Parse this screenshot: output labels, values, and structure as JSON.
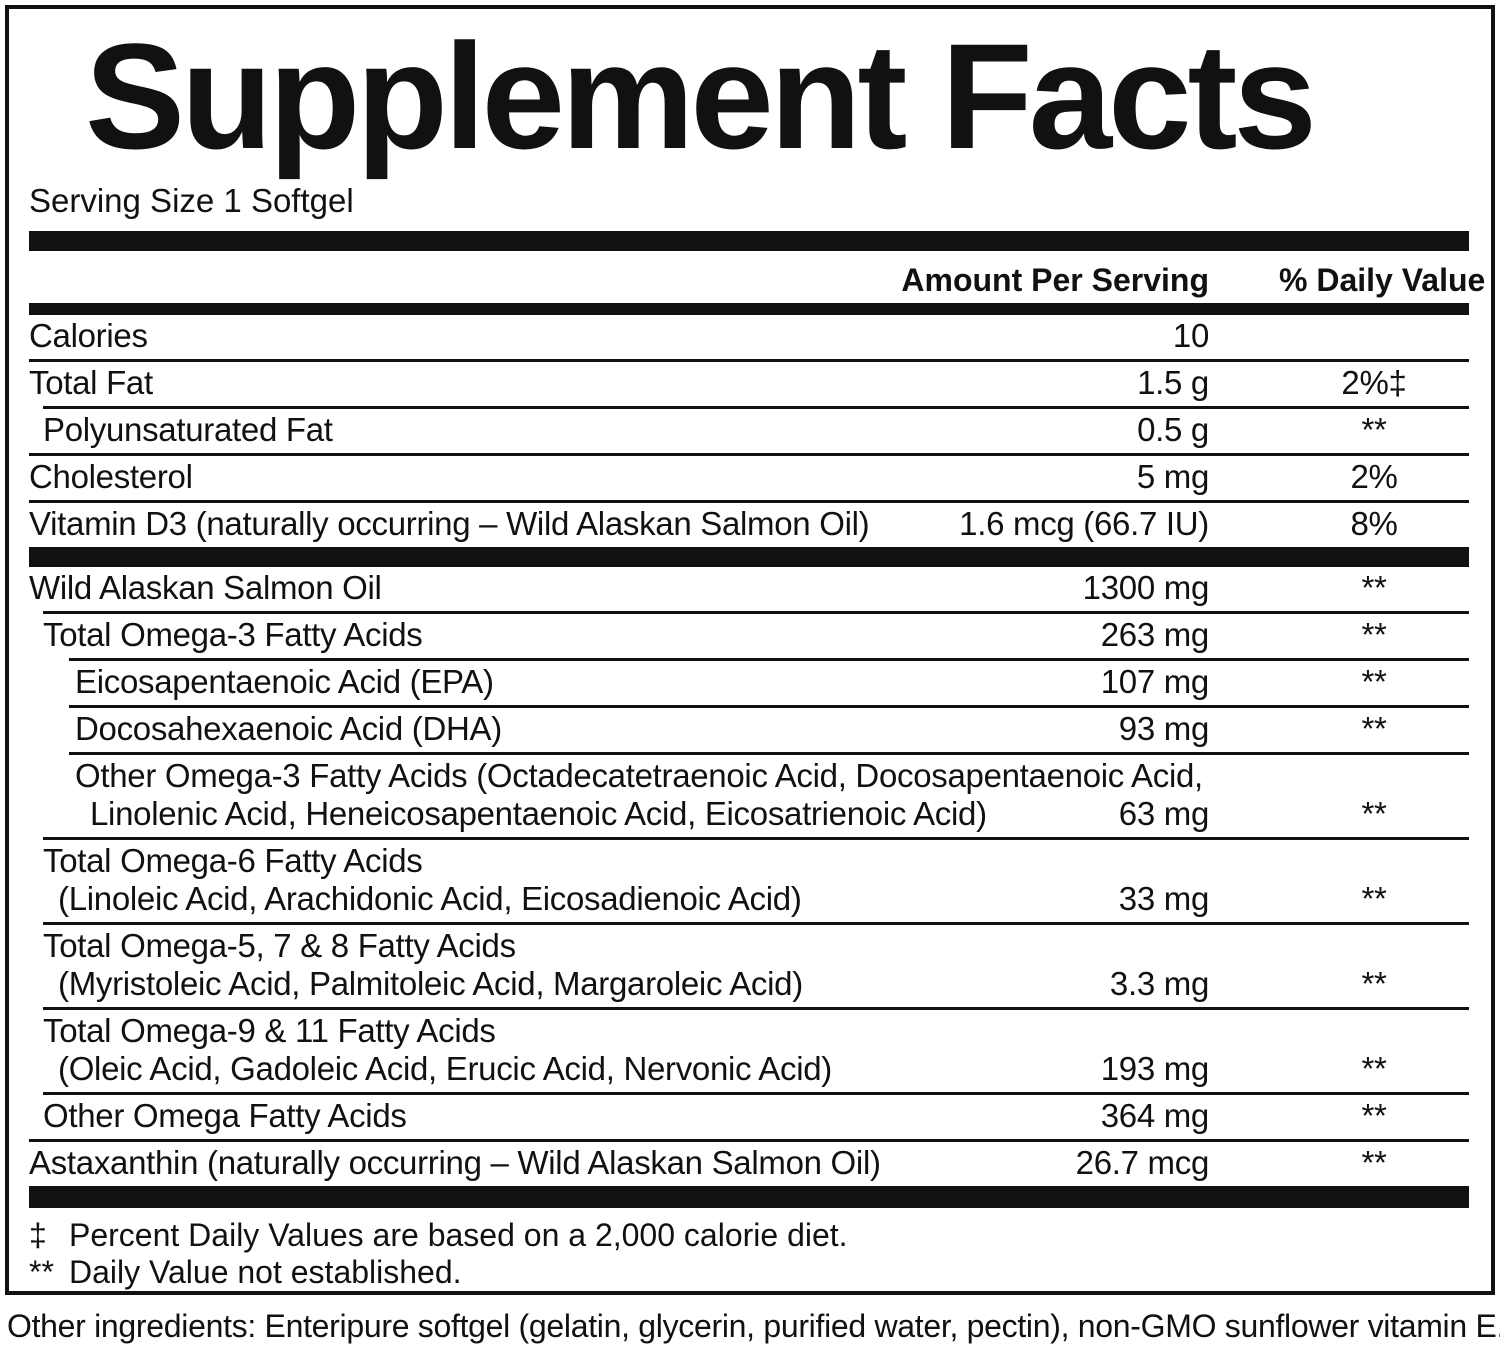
{
  "title": "Supplement Facts",
  "serving_size": "Serving Size 1 Softgel",
  "columns": {
    "amount": "Amount Per Serving",
    "daily_value": "% Daily Value"
  },
  "rows": [
    {
      "name": "Calories",
      "amount": "10",
      "dv": ""
    },
    {
      "name": "Total Fat",
      "amount": "1.5 g",
      "dv": "2%‡"
    },
    {
      "name": "Polyunsaturated Fat",
      "amount": "0.5 g",
      "dv": "**"
    },
    {
      "name": "Cholesterol",
      "amount": "5 mg",
      "dv": "2%"
    },
    {
      "name": "Vitamin D3 (naturally occurring – Wild Alaskan Salmon Oil)",
      "amount": "1.6 mcg (66.7 IU)",
      "dv": "8%"
    },
    {
      "name": "Wild Alaskan Salmon Oil",
      "amount": "1300 mg",
      "dv": "**"
    },
    {
      "name": "Total Omega-3 Fatty Acids",
      "amount": "263 mg",
      "dv": "**"
    },
    {
      "name": "Eicosapentaenoic Acid (EPA)",
      "amount": "107 mg",
      "dv": "**"
    },
    {
      "name": "Docosahexaenoic Acid (DHA)",
      "amount": "93 mg",
      "dv": "**"
    },
    {
      "name": "Other Omega-3 Fatty Acids (Octadecatetraenoic Acid, Docosapentaenoic Acid,",
      "name2": "Linolenic Acid, Heneicosapentaenoic Acid, Eicosatrienoic Acid)",
      "amount": "63 mg",
      "dv": "**"
    },
    {
      "name": "Total Omega-6 Fatty Acids",
      "name2": "(Linoleic Acid, Arachidonic Acid, Eicosadienoic Acid)",
      "amount": "33 mg",
      "dv": "**"
    },
    {
      "name": "Total Omega-5, 7 & 8 Fatty Acids",
      "name2": "(Myristoleic Acid, Palmitoleic Acid, Margaroleic Acid)",
      "amount": "3.3 mg",
      "dv": "**"
    },
    {
      "name": "Total Omega-9 & 11 Fatty Acids",
      "name2": "(Oleic Acid, Gadoleic Acid, Erucic Acid, Nervonic Acid)",
      "amount": "193 mg",
      "dv": "**"
    },
    {
      "name": "Other Omega Fatty Acids",
      "amount": "364 mg",
      "dv": "**"
    },
    {
      "name": "Astaxanthin (naturally occurring – Wild Alaskan Salmon Oil)",
      "amount": "26.7 mcg",
      "dv": "**"
    }
  ],
  "footnotes": [
    {
      "symbol": "‡",
      "text": "Percent Daily Values are based on a 2,000 calorie diet."
    },
    {
      "symbol": "**",
      "text": "Daily Value not established."
    }
  ],
  "other_ingredients": "Other ingredients: Enteripure softgel (gelatin, glycerin, purified water, pectin), non-GMO sunflower vitamin E.",
  "colors": {
    "ink": "#111111",
    "background": "#ffffff"
  }
}
